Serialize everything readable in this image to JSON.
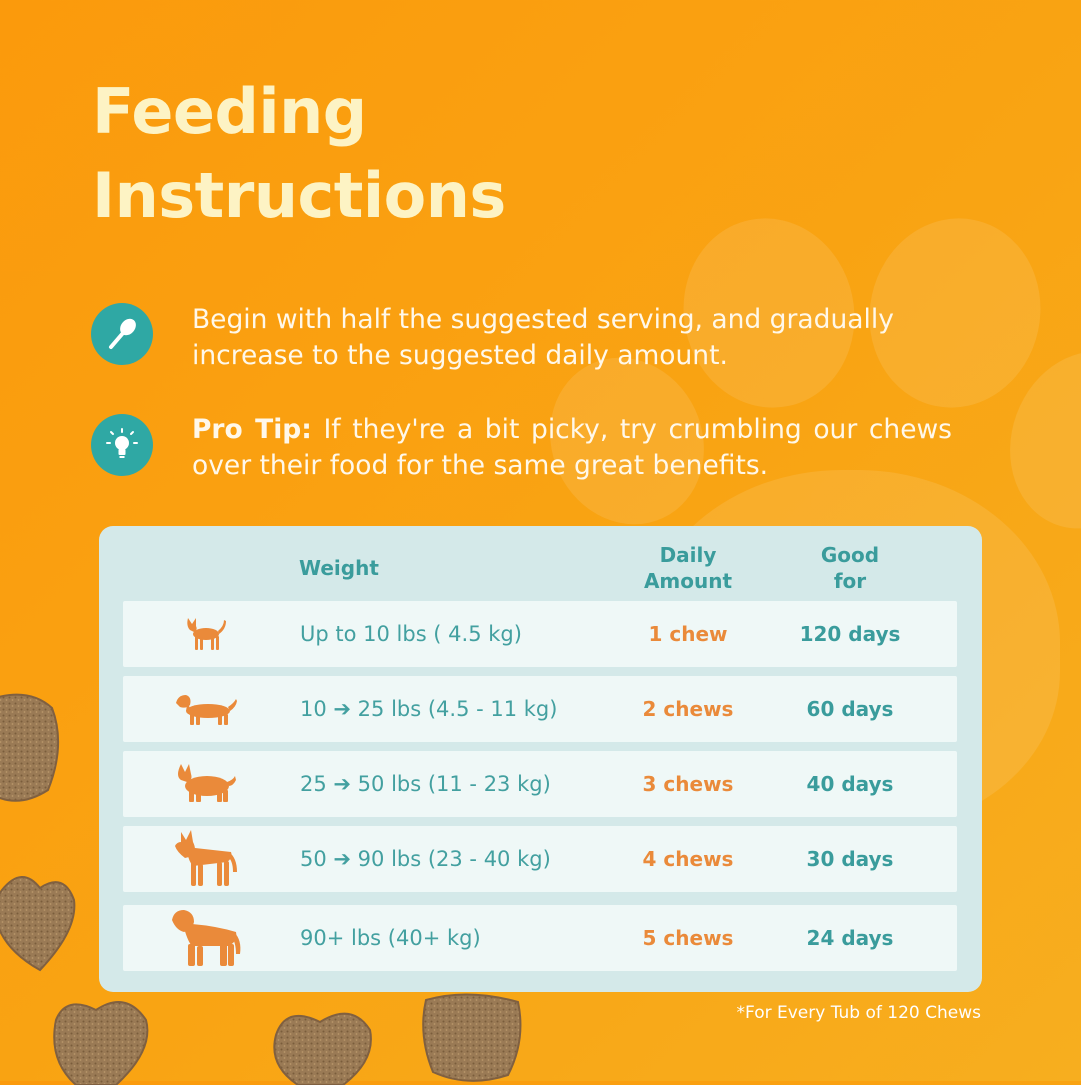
{
  "title": {
    "line1": "Feeding",
    "line2": "Instructions"
  },
  "tips": [
    {
      "icon": "spoon-icon",
      "lead": "",
      "text": "Begin with half the suggested serving, and gradually increase to the suggested daily amount."
    },
    {
      "icon": "lightbulb-icon",
      "lead": "Pro Tip:",
      "text": "If they're a bit picky, try crumbling our chews over their food for the same great benefits."
    }
  ],
  "table": {
    "headers": {
      "weight": "Weight",
      "daily_line1": "Daily",
      "daily_line2": "Amount",
      "good_line1": "Good",
      "good_line2": "for"
    },
    "rows": [
      {
        "icon": "small-dog-icon",
        "weight": "Up to 10 lbs ( 4.5 kg)",
        "amount": "1 chew",
        "good_for": "120 days"
      },
      {
        "icon": "dachshund-icon",
        "weight": "10  ➔ 25 lbs (4.5 - 11 kg)",
        "amount": "2 chews",
        "good_for": "60 days"
      },
      {
        "icon": "corgi-icon",
        "weight": "25  ➔ 50 lbs (11 - 23 kg)",
        "amount": "3 chews",
        "good_for": "40 days"
      },
      {
        "icon": "shepherd-dog-icon",
        "weight": "50  ➔ 90 lbs (23 - 40 kg)",
        "amount": "4 chews",
        "good_for": "30 days"
      },
      {
        "icon": "large-dog-icon",
        "weight": "90+ lbs (40+ kg)",
        "amount": "5 chews",
        "good_for": "24 days"
      }
    ]
  },
  "footnote": "*For Every Tub of 120 Chews",
  "colors": {
    "background": "#fb9a0c",
    "title": "#fdf3c4",
    "teal": "#2fa8a4",
    "table_bg": "#d4e9e9",
    "row_bg": "#eff8f7",
    "amount": "#ea8a3a"
  }
}
